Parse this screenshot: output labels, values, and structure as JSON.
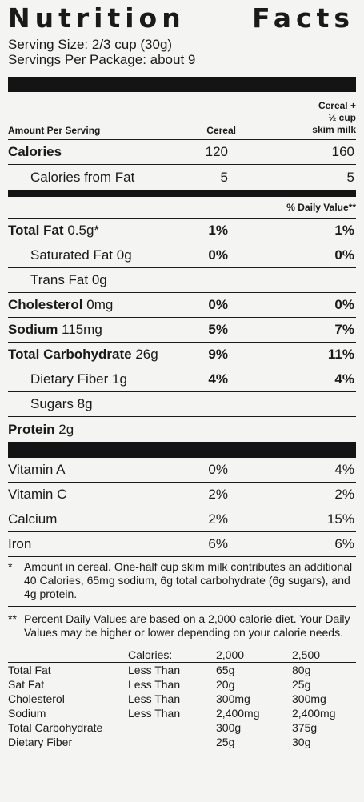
{
  "title": "Nutrition Facts",
  "title_words": [
    "Nutrition",
    "Facts"
  ],
  "serving_size": "Serving Size: 2/3 cup (30g)",
  "servings_per_package": "Servings Per Package: about 9",
  "header": {
    "amount_per_serving": "Amount Per Serving",
    "col1": "Cereal",
    "col2_line1": "Cereal +",
    "col2_line2": "½ cup",
    "col2_line3": "skim milk"
  },
  "calories": {
    "label": "Calories",
    "v1": "120",
    "v2": "160"
  },
  "calories_fat": {
    "label": "Calories from Fat",
    "v1": "5",
    "v2": "5"
  },
  "daily_value_header": "% Daily Value**",
  "nutrients": [
    {
      "name": "Total Fat",
      "amount": "0.5g*",
      "v1": "1%",
      "v2": "1%",
      "bold": true,
      "indent": false
    },
    {
      "name": "Saturated Fat",
      "amount": "0g",
      "v1": "0%",
      "v2": "0%",
      "bold": false,
      "indent": true
    },
    {
      "name": "Trans Fat",
      "amount": "0g",
      "v1": "",
      "v2": "",
      "bold": false,
      "indent": true
    },
    {
      "name": "Cholesterol",
      "amount": "0mg",
      "v1": "0%",
      "v2": "0%",
      "bold": true,
      "indent": false
    },
    {
      "name": "Sodium",
      "amount": "115mg",
      "v1": "5%",
      "v2": "7%",
      "bold": true,
      "indent": false
    },
    {
      "name": "Total Carbohydrate",
      "amount": "26g",
      "v1": "9%",
      "v2": "11%",
      "bold": true,
      "indent": false
    },
    {
      "name": "Dietary Fiber",
      "amount": "1g",
      "v1": "4%",
      "v2": "4%",
      "bold": false,
      "indent": true
    },
    {
      "name": "Sugars",
      "amount": "8g",
      "v1": "",
      "v2": "",
      "bold": false,
      "indent": true
    },
    {
      "name": "Protein",
      "amount": "2g",
      "v1": "",
      "v2": "",
      "bold": true,
      "indent": false
    }
  ],
  "vitamins": [
    {
      "name": "Vitamin A",
      "v1": "0%",
      "v2": "4%"
    },
    {
      "name": "Vitamin C",
      "v1": "2%",
      "v2": "2%"
    },
    {
      "name": "Calcium",
      "v1": "2%",
      "v2": "15%"
    },
    {
      "name": "Iron",
      "v1": "6%",
      "v2": "6%"
    }
  ],
  "footnote1_mark": "*",
  "footnote1": "Amount in cereal. One-half cup skim milk contributes an additional 40 Calories, 65mg sodium, 6g total carbohydrate (6g sugars), and 4g protein.",
  "footnote2_mark": "**",
  "footnote2": "Percent Daily Values are based on a 2,000 calorie diet. Your Daily Values may be higher or lower depending on your calorie needs.",
  "dv_table": {
    "header": {
      "label": "Calories:",
      "c1": "2,000",
      "c2": "2,500"
    },
    "rows": [
      {
        "name": "Total Fat",
        "limit": "Less Than",
        "c1": "65g",
        "c2": "80g",
        "sub": false
      },
      {
        "name": "Sat Fat",
        "limit": "Less Than",
        "c1": "20g",
        "c2": "25g",
        "sub": true
      },
      {
        "name": "Cholesterol",
        "limit": "Less Than",
        "c1": "300mg",
        "c2": "300mg",
        "sub": false
      },
      {
        "name": "Sodium",
        "limit": "Less Than",
        "c1": "2,400mg",
        "c2": "2,400mg",
        "sub": false
      },
      {
        "name": "Total Carbohydrate",
        "limit": "",
        "c1": "300g",
        "c2": "375g",
        "sub": false
      },
      {
        "name": "Dietary Fiber",
        "limit": "",
        "c1": "25g",
        "c2": "30g",
        "sub": true
      }
    ]
  }
}
